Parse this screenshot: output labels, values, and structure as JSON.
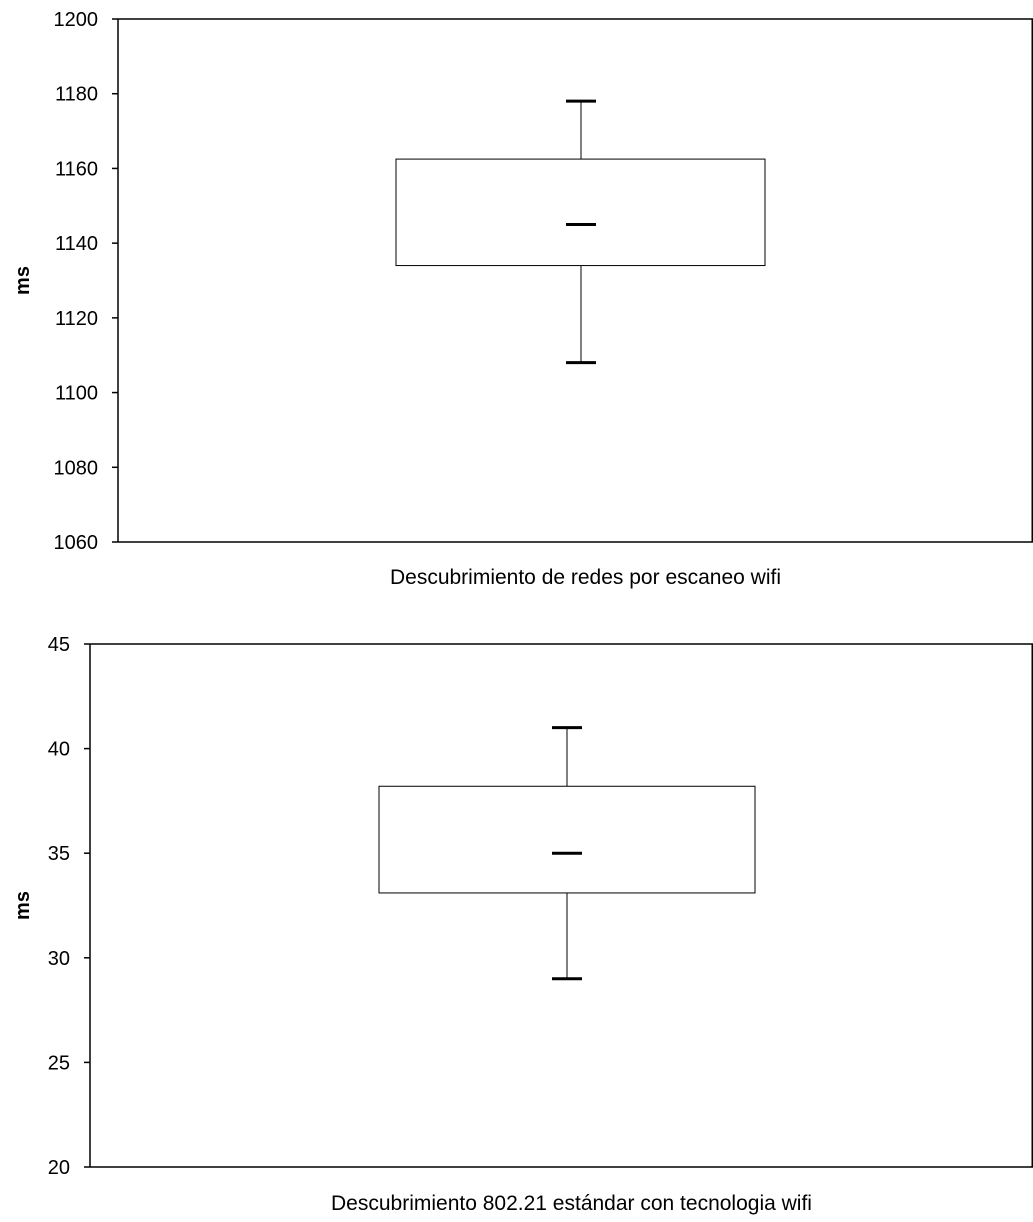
{
  "chart_data": [
    {
      "type": "box",
      "title": "",
      "xlabel": "Descubrimiento de redes por escaneo wifi",
      "ylabel": "ms",
      "ylim": [
        1060,
        1200
      ],
      "yticks": [
        1060,
        1080,
        1100,
        1120,
        1140,
        1160,
        1180,
        1200
      ],
      "grid": false,
      "legend": "none",
      "box": {
        "min": 1108,
        "q1": 1134,
        "median": 1145,
        "q3": 1162.5,
        "max": 1178
      }
    },
    {
      "type": "box",
      "title": "",
      "xlabel": "Descubrimiento 802.21 estándar con tecnologia wifi",
      "ylabel": "ms",
      "ylim": [
        20,
        45
      ],
      "yticks": [
        20,
        25,
        30,
        35,
        40,
        45
      ],
      "grid": false,
      "legend": "none",
      "box": {
        "min": 29,
        "q1": 33.1,
        "median": 35,
        "q3": 38.2,
        "max": 41
      }
    }
  ]
}
